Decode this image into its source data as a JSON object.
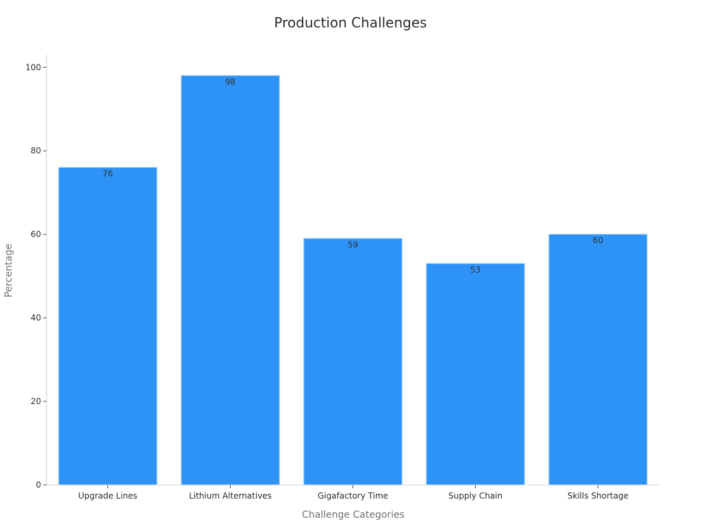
{
  "chart_data": {
    "type": "bar",
    "title": "Production Challenges",
    "xlabel": "Challenge Categories",
    "ylabel": "Percentage",
    "categories": [
      "Upgrade Lines",
      "Lithium Alternatives",
      "Gigafactory Time",
      "Supply Chain",
      "Skills Shortage"
    ],
    "values": [
      76,
      98,
      59,
      53,
      60
    ],
    "data_labels": [
      "76",
      "98",
      "59",
      "53",
      "60"
    ],
    "ylim": [
      0,
      103
    ],
    "yticks": [
      0,
      20,
      40,
      60,
      80,
      100
    ],
    "ytick_labels": [
      "0",
      "20",
      "40",
      "60",
      "80",
      "100"
    ],
    "grid": false,
    "legend": "none",
    "colors": {
      "bar": "#2E93F7",
      "bar_edge": "#7FBDF9",
      "axis": "#d0d0d0",
      "tick": "#444444"
    }
  }
}
